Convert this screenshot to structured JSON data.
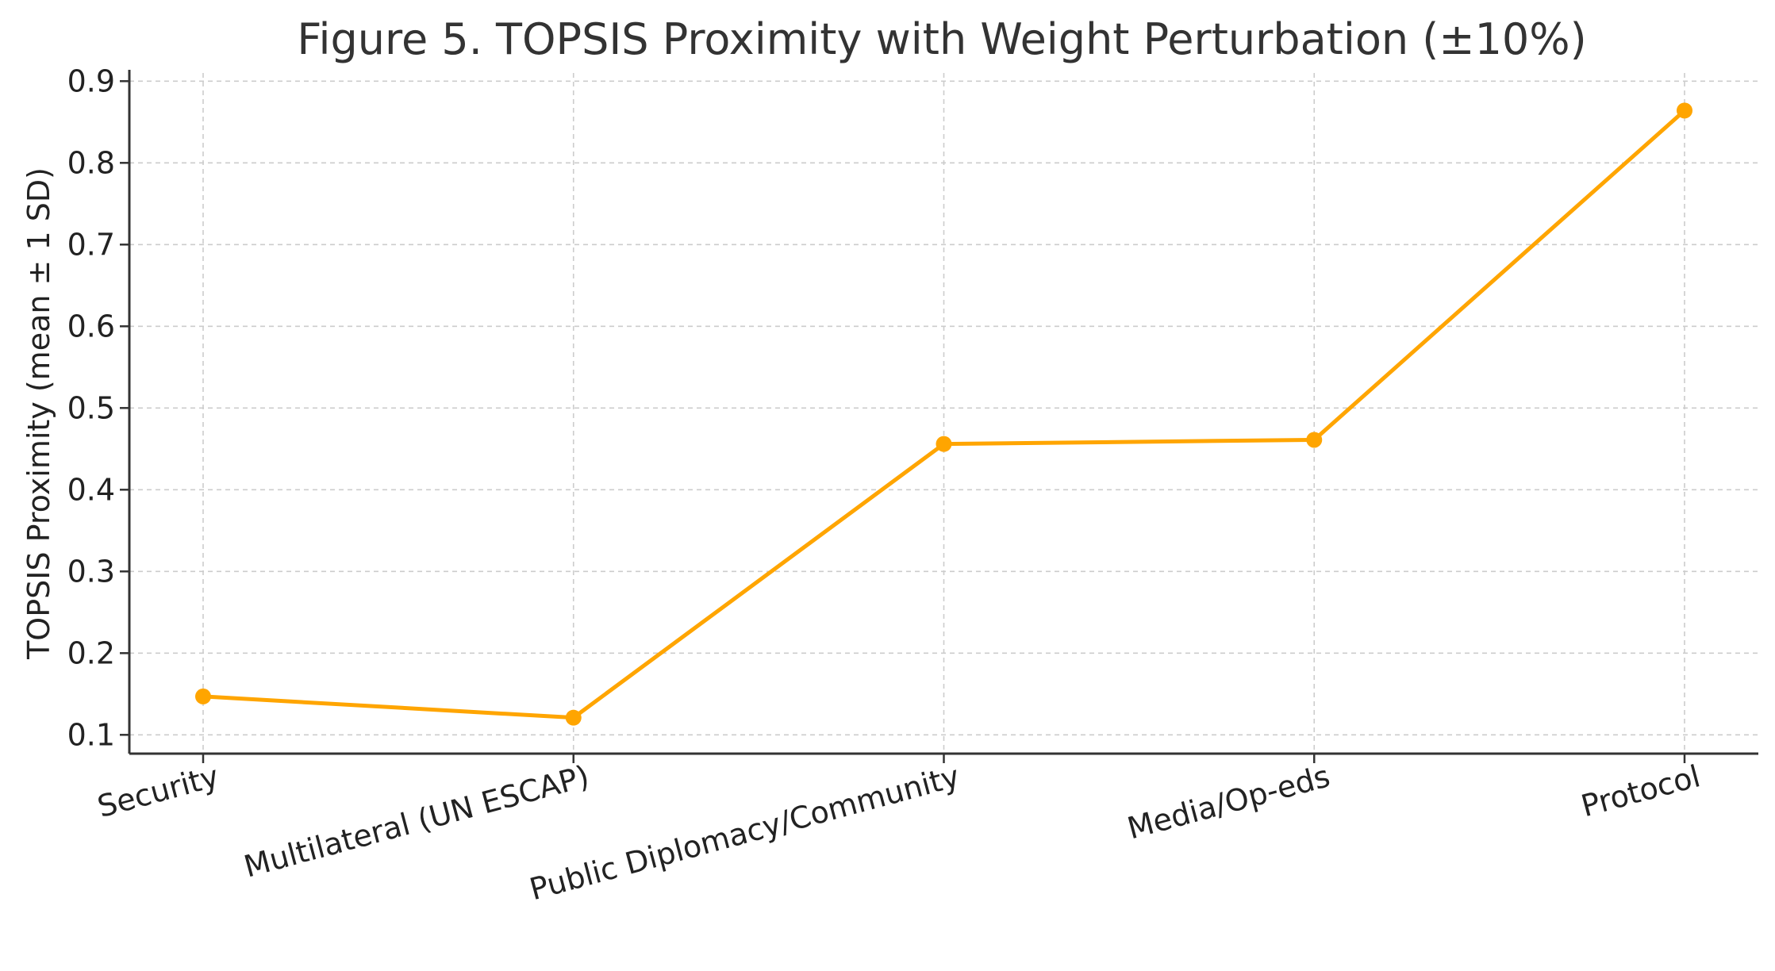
{
  "chart_data": {
    "type": "line",
    "title": "Figure 5. TOPSIS Proximity with Weight Perturbation (±10%)",
    "xlabel": "",
    "ylabel": "TOPSIS Proximity (mean ± 1 SD)",
    "categories": [
      "Security",
      "Multilateral (UN ESCAP)",
      "Public Diplomacy/Community",
      "Media/Op-eds",
      "Protocol"
    ],
    "series": [
      {
        "values": [
          0.147,
          0.121,
          0.456,
          0.461,
          0.864
        ]
      }
    ],
    "ylim": [
      0.077,
      0.91
    ],
    "yticks": [
      "0.1",
      "0.2",
      "0.3",
      "0.4",
      "0.5",
      "0.6",
      "0.7",
      "0.8",
      "0.9"
    ],
    "grid": true,
    "legend": "none",
    "colors": {
      "line": "#ffa500",
      "marker": "#ffa500"
    }
  }
}
